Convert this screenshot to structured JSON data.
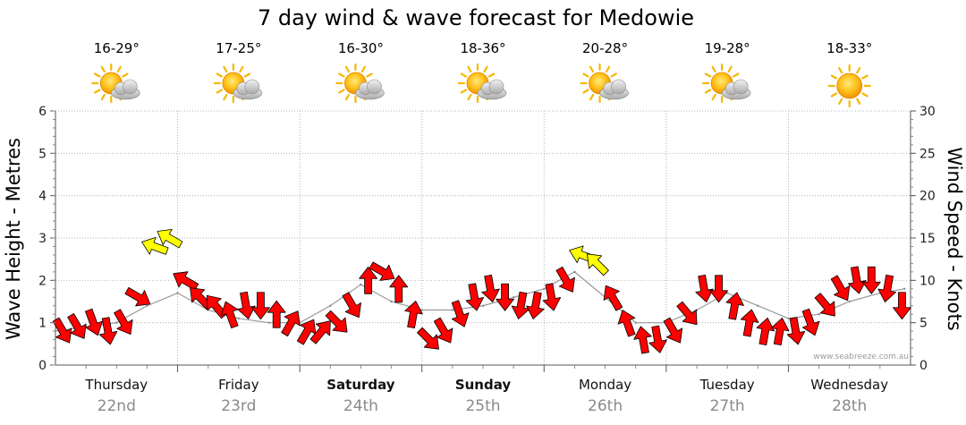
{
  "chart_data": {
    "type": "line",
    "title": "7 day wind & wave forecast for Medowie",
    "ylabel_left": "Wave Height - Metres",
    "ylabel_right": "Wind Speed - Knots",
    "ylim_left": [
      0,
      6
    ],
    "ylim_right": [
      0,
      30
    ],
    "left_ticks": [
      "0",
      "1",
      "2",
      "3",
      "4",
      "5",
      "6"
    ],
    "right_ticks": [
      "0",
      "5",
      "10",
      "15",
      "20",
      "25",
      "30"
    ],
    "grid": true,
    "credit": "www.seabreeze.com.au",
    "days": [
      {
        "name": "Thursday",
        "date": "22nd",
        "temp": "16-29°",
        "weather": "partly-cloudy-icon",
        "bold": false
      },
      {
        "name": "Friday",
        "date": "23rd",
        "temp": "17-25°",
        "weather": "partly-cloudy-icon",
        "bold": false
      },
      {
        "name": "Saturday",
        "date": "24th",
        "temp": "16-30°",
        "weather": "partly-cloudy-icon",
        "bold": true
      },
      {
        "name": "Sunday",
        "date": "25th",
        "temp": "18-36°",
        "weather": "partly-cloudy-icon",
        "bold": true
      },
      {
        "name": "Monday",
        "date": "26th",
        "temp": "20-28°",
        "weather": "partly-cloudy-icon",
        "bold": false
      },
      {
        "name": "Tuesday",
        "date": "27th",
        "temp": "19-28°",
        "weather": "partly-cloudy-icon",
        "bold": false
      },
      {
        "name": "Wednesday",
        "date": "28th",
        "temp": "18-33°",
        "weather": "sunny-icon",
        "bold": false
      }
    ],
    "wind_series": {
      "name": "Wind Speed",
      "unit": "knots",
      "x_day": [
        0.0,
        0.12,
        0.25,
        0.37,
        0.5,
        0.62,
        0.75,
        0.87,
        1.0,
        1.12,
        1.25,
        1.37,
        1.5,
        1.62,
        1.75,
        1.87,
        2.0,
        2.12,
        2.25,
        2.37,
        2.5,
        2.62,
        2.75,
        2.87,
        3.0,
        3.12,
        3.25,
        3.37,
        3.5,
        3.62,
        3.75,
        3.87,
        4.0,
        4.12,
        4.25,
        4.37,
        4.5,
        4.62,
        4.75,
        4.87,
        5.0,
        5.12,
        5.25,
        5.37,
        5.5,
        5.62,
        5.75,
        5.87,
        6.0,
        6.12,
        6.25,
        6.37,
        6.5,
        6.62,
        6.75,
        6.87
      ],
      "values": [
        4,
        4.5,
        5,
        4,
        5,
        8,
        14,
        15,
        10,
        8,
        7,
        6,
        7,
        7,
        6,
        5,
        4,
        4,
        5,
        7,
        10,
        11,
        9,
        6,
        3,
        4,
        6,
        8,
        9,
        8,
        7,
        7,
        8,
        10,
        13,
        12,
        8,
        5,
        3,
        3,
        4,
        6,
        9,
        9,
        7,
        5,
        4,
        4,
        4,
        5,
        7,
        9,
        10,
        10,
        9,
        7
      ],
      "direction_deg": [
        60,
        60,
        70,
        80,
        60,
        30,
        200,
        210,
        210,
        225,
        230,
        250,
        80,
        90,
        270,
        300,
        300,
        310,
        45,
        60,
        270,
        30,
        270,
        280,
        45,
        60,
        70,
        80,
        80,
        90,
        100,
        100,
        80,
        60,
        200,
        225,
        240,
        250,
        260,
        80,
        60,
        50,
        80,
        90,
        280,
        280,
        280,
        280,
        80,
        70,
        50,
        60,
        80,
        90,
        100,
        90
      ]
    },
    "wave_series": {
      "name": "Wave Height",
      "unit": "metres",
      "x_day": [
        0.0,
        0.25,
        0.5,
        0.75,
        1.0,
        1.25,
        1.5,
        1.75,
        2.0,
        2.25,
        2.5,
        2.75,
        3.0,
        3.25,
        3.5,
        3.75,
        4.0,
        4.25,
        4.5,
        4.75,
        5.0,
        5.25,
        5.5,
        5.75,
        6.0,
        6.25,
        6.5,
        6.75,
        6.95
      ],
      "values": [
        0.8,
        0.9,
        1.0,
        1.4,
        1.7,
        1.3,
        1.1,
        1.0,
        1.0,
        1.4,
        1.9,
        1.5,
        1.3,
        1.3,
        1.4,
        1.6,
        1.8,
        2.2,
        1.6,
        1.0,
        1.0,
        1.3,
        1.7,
        1.4,
        1.1,
        1.2,
        1.5,
        1.7,
        1.8
      ]
    }
  }
}
